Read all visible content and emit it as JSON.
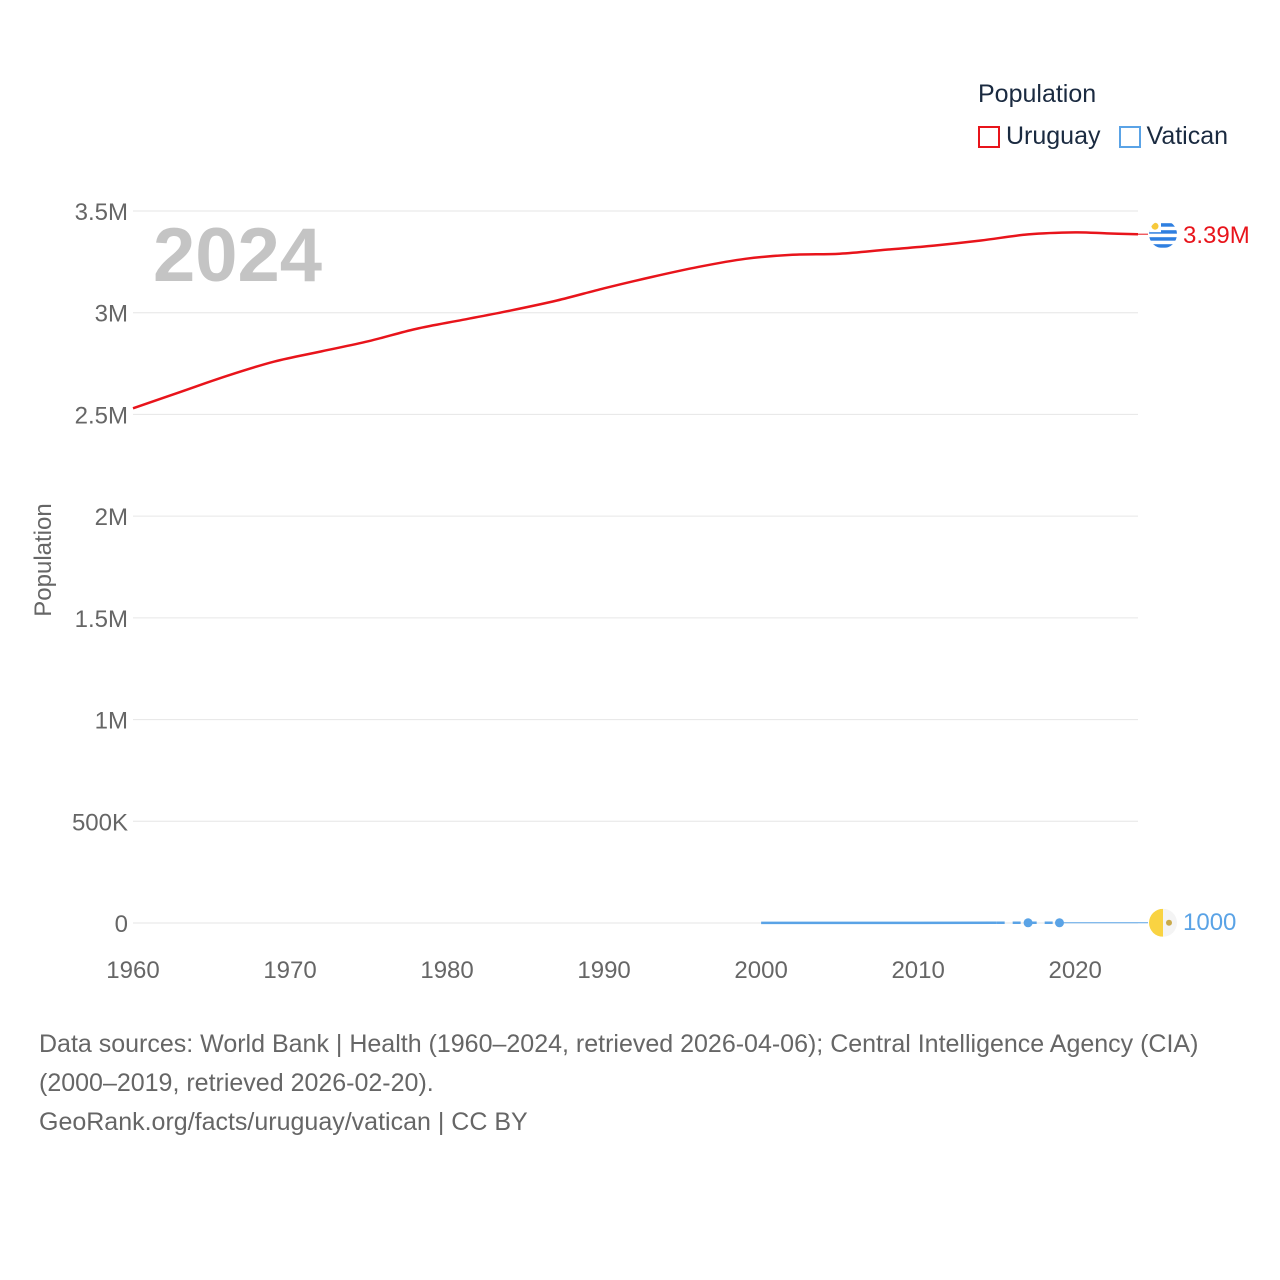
{
  "legend": {
    "title": "Population",
    "items": [
      {
        "name": "Uruguay",
        "color": "#e8141b"
      },
      {
        "name": "Vatican",
        "color": "#5aa3e6"
      }
    ]
  },
  "year_watermark": "2024",
  "footer": {
    "sources": "Data sources: World Bank | Health (1960–2024, retrieved 2026-04-06); Central Intelligence Agency (CIA) (2000–2019, retrieved 2026-02-20).",
    "credit": "GeoRank.org/facts/uruguay/vatican | CC BY"
  },
  "chart_data": {
    "type": "line",
    "title": "",
    "xlabel": "",
    "ylabel": "Population",
    "xlim": [
      1960,
      2024
    ],
    "ylim": [
      0,
      3500000
    ],
    "x_ticks": [
      1960,
      1970,
      1980,
      1990,
      2000,
      2010,
      2020
    ],
    "y_ticks": [
      {
        "value": 0,
        "label": "0"
      },
      {
        "value": 500000,
        "label": "500K"
      },
      {
        "value": 1000000,
        "label": "1M"
      },
      {
        "value": 1500000,
        "label": "1.5M"
      },
      {
        "value": 2000000,
        "label": "2M"
      },
      {
        "value": 2500000,
        "label": "2.5M"
      },
      {
        "value": 3000000,
        "label": "3M"
      },
      {
        "value": 3500000,
        "label": "3.5M"
      }
    ],
    "grid": true,
    "legend_position": "top-right",
    "series": [
      {
        "name": "Uruguay",
        "color": "#e8141b",
        "end_label": "3.39M",
        "points": [
          [
            1960,
            2530000
          ],
          [
            1963,
            2610000
          ],
          [
            1966,
            2690000
          ],
          [
            1969,
            2760000
          ],
          [
            1972,
            2810000
          ],
          [
            1975,
            2860000
          ],
          [
            1978,
            2920000
          ],
          [
            1981,
            2965000
          ],
          [
            1984,
            3010000
          ],
          [
            1987,
            3060000
          ],
          [
            1990,
            3120000
          ],
          [
            1993,
            3175000
          ],
          [
            1996,
            3225000
          ],
          [
            1999,
            3265000
          ],
          [
            2002,
            3285000
          ],
          [
            2005,
            3290000
          ],
          [
            2008,
            3310000
          ],
          [
            2011,
            3330000
          ],
          [
            2014,
            3355000
          ],
          [
            2017,
            3385000
          ],
          [
            2020,
            3395000
          ],
          [
            2022,
            3390000
          ],
          [
            2024,
            3386000
          ]
        ]
      },
      {
        "name": "Vatican",
        "color": "#5aa3e6",
        "end_label": "1000",
        "points": [
          [
            2000,
            900
          ],
          [
            2005,
            920
          ],
          [
            2010,
            830
          ],
          [
            2015,
            1000
          ],
          [
            2017,
            1000
          ],
          [
            2019,
            1000
          ],
          [
            2024,
            1000
          ]
        ],
        "markers": [
          2017,
          2019
        ]
      }
    ]
  }
}
